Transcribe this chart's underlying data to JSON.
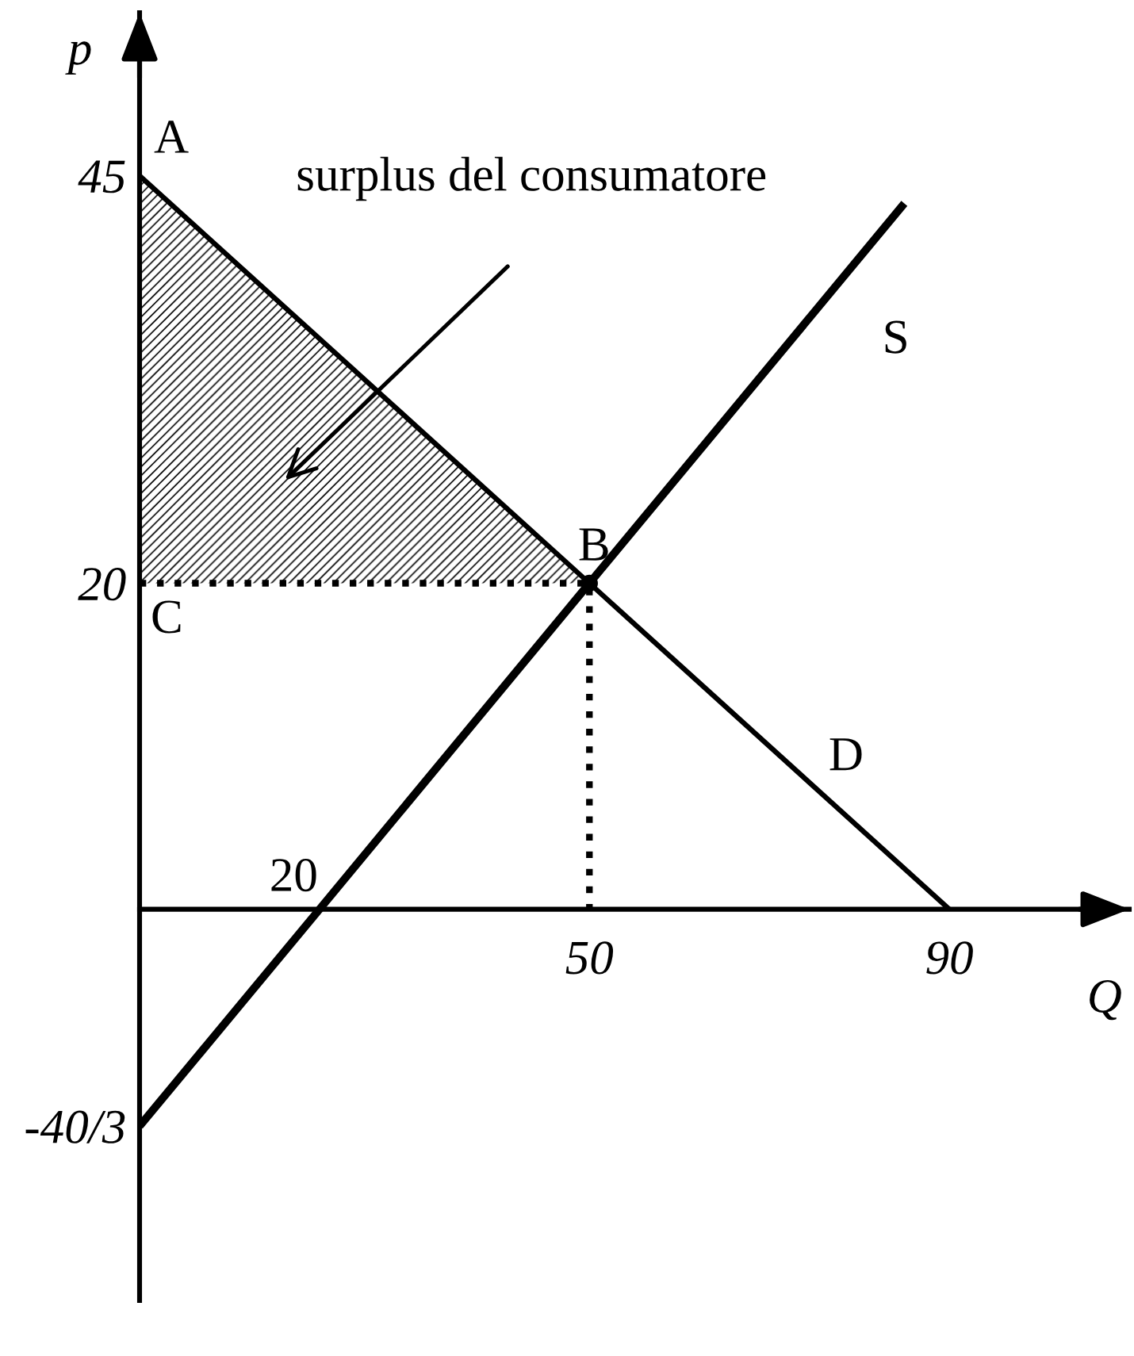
{
  "chart_data": {
    "type": "line",
    "xlabel": "Q",
    "ylabel": "p",
    "xlim": [
      0,
      110
    ],
    "ylim": [
      -24,
      55
    ],
    "xticks": [
      50,
      90
    ],
    "yticks": [
      {
        "value": -13.3,
        "label": "-40/3"
      },
      20,
      45
    ],
    "series": [
      {
        "color": "#000000",
        "x": [
          0,
          50,
          90
        ],
        "values": [
          45,
          20,
          0
        ],
        "lower": [
          20,
          20,
          null
        ],
        "upper": [
          45,
          20,
          null
        ]
      },
      {
        "color": "#000000",
        "x": [
          0,
          20,
          50,
          85
        ],
        "values": [
          -13.3,
          0,
          20,
          43.3
        ]
      },
      {
        "color": "#000000",
        "x": [
          0,
          50,
          50
        ],
        "values": [
          20,
          20,
          0
        ],
        "line_style": "dotted"
      },
      {
        "type": "scatter",
        "color": "#000000",
        "x": [
          50
        ],
        "values": [
          20
        ],
        "marker": "circle"
      }
    ],
    "annotations": [
      {
        "text": "A",
        "x": 0,
        "y": 45
      },
      "surplus del consumatore",
      {
        "text": "S",
        "x": 80,
        "y": 40
      },
      {
        "text": "B",
        "x": 50,
        "y": 20
      },
      {
        "text": "C",
        "x": 0,
        "y": 20
      },
      {
        "text": "D",
        "x": 75,
        "y": 7.5
      },
      {
        "text": "20",
        "x": 20,
        "y": 0
      }
    ]
  }
}
